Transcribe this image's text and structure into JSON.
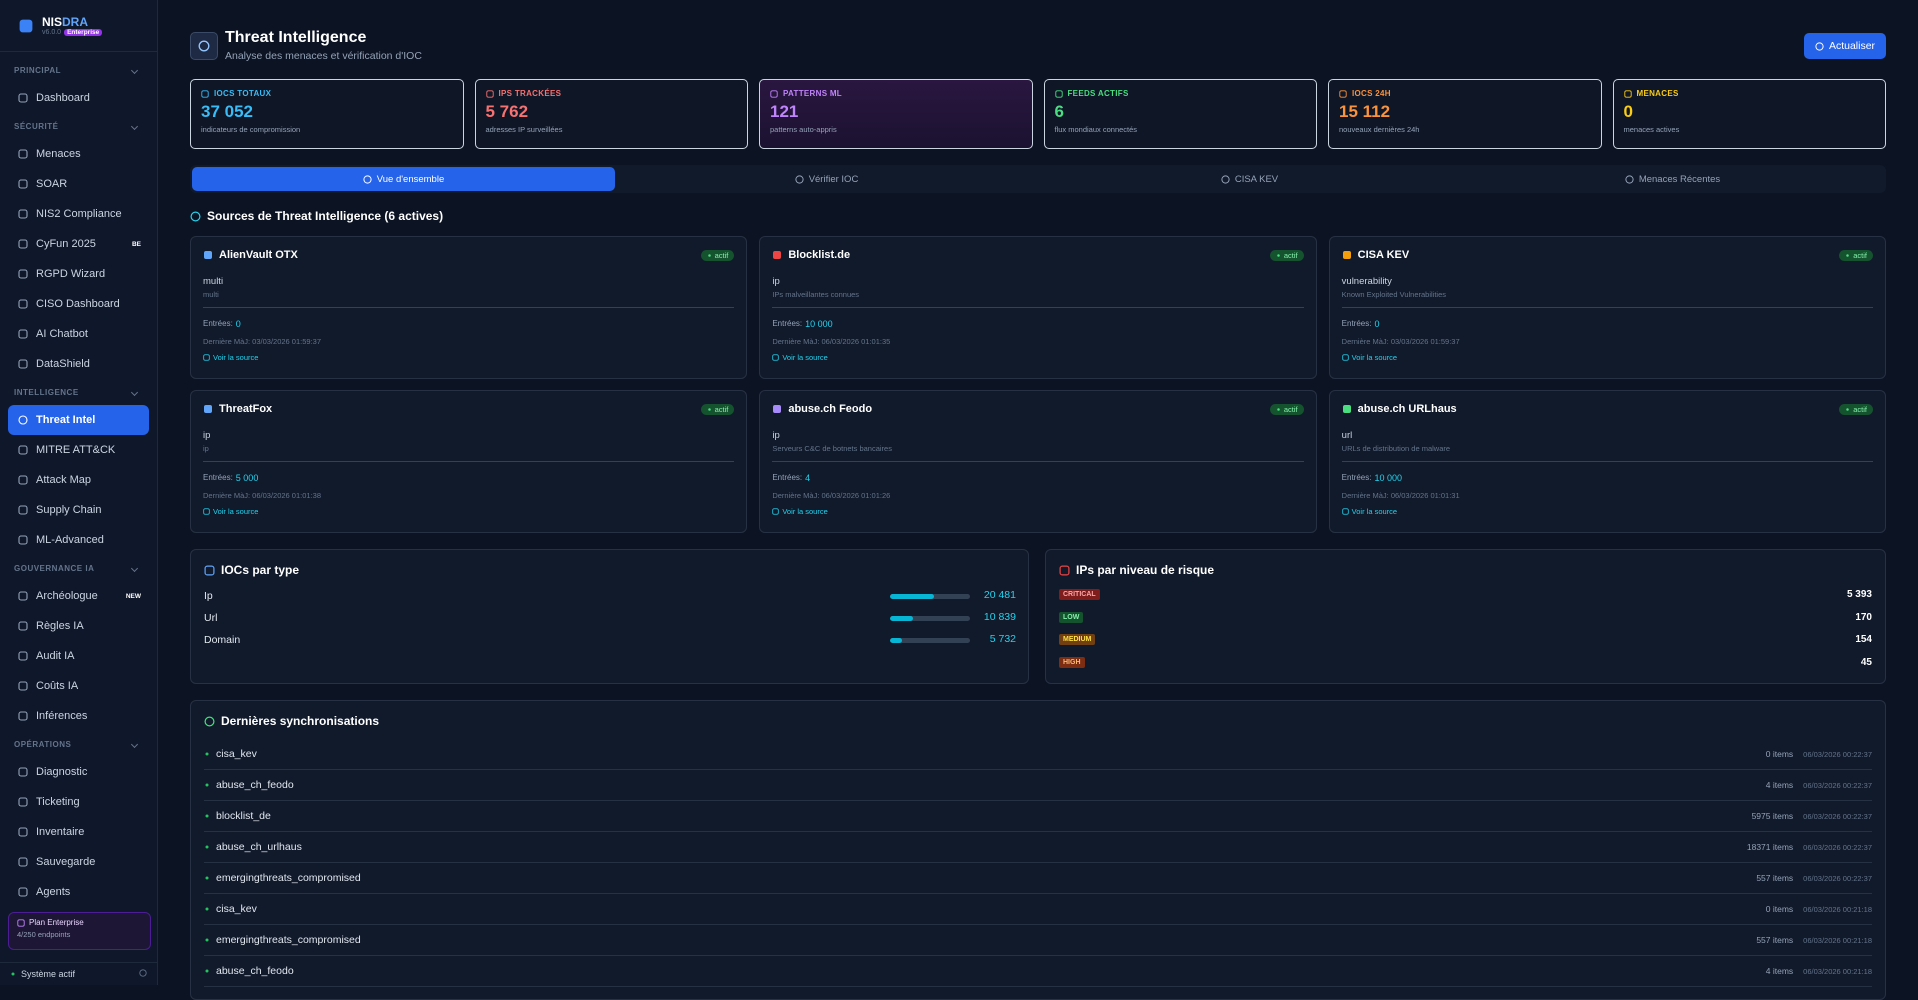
{
  "sidebar": {
    "brand_a": "NIS",
    "brand_b": "DRA",
    "version": "v6.0.0",
    "edition": "Enterprise",
    "sections": [
      {
        "label": "PRINCIPAL",
        "items": [
          {
            "label": "Dashboard"
          }
        ]
      },
      {
        "label": "SÉCURITÉ",
        "items": [
          {
            "label": "Menaces"
          },
          {
            "label": "SOAR"
          },
          {
            "label": "NIS2 Compliance"
          },
          {
            "label": "CyFun 2025",
            "badge": "BE"
          },
          {
            "label": "RGPD Wizard"
          },
          {
            "label": "CISO Dashboard"
          },
          {
            "label": "AI Chatbot"
          },
          {
            "label": "DataShield"
          }
        ]
      },
      {
        "label": "INTELLIGENCE",
        "items": [
          {
            "label": "Threat Intel",
            "active": true
          },
          {
            "label": "MITRE ATT&CK"
          },
          {
            "label": "Attack Map"
          },
          {
            "label": "Supply Chain"
          },
          {
            "label": "ML-Advanced"
          }
        ]
      },
      {
        "label": "GOUVERNANCE IA",
        "items": [
          {
            "label": "Archéologue",
            "badge": "NEW"
          },
          {
            "label": "Règles IA"
          },
          {
            "label": "Audit IA"
          },
          {
            "label": "Coûts IA"
          },
          {
            "label": "Inférences"
          }
        ]
      },
      {
        "label": "OPÉRATIONS",
        "items": [
          {
            "label": "Diagnostic"
          },
          {
            "label": "Ticketing"
          },
          {
            "label": "Inventaire"
          },
          {
            "label": "Sauvegarde"
          },
          {
            "label": "Agents"
          }
        ]
      }
    ],
    "plan": {
      "title": "Plan Enterprise",
      "usage": "4/250 endpoints"
    },
    "status": "Système actif"
  },
  "header": {
    "title": "Threat Intelligence",
    "subtitle": "Analyse des menaces et vérification d'IOC",
    "button": "Actualiser"
  },
  "stats": [
    {
      "label": "IOCS TOTAUX",
      "value": "37 052",
      "caption": "indicateurs de compromission",
      "color": "#38bdf8"
    },
    {
      "label": "IPS TRACKÉES",
      "value": "5 762",
      "caption": "adresses IP surveillées",
      "color": "#f87171"
    },
    {
      "label": "PATTERNS ML",
      "value": "121",
      "caption": "patterns auto-appris",
      "color": "#c084fc"
    },
    {
      "label": "FEEDS ACTIFS",
      "value": "6",
      "caption": "flux mondiaux connectés",
      "color": "#4ade80"
    },
    {
      "label": "IOCS 24H",
      "value": "15 112",
      "caption": "nouveaux dernières 24h",
      "color": "#fb923c"
    },
    {
      "label": "MENACES",
      "value": "0",
      "caption": "menaces actives",
      "color": "#facc15"
    }
  ],
  "tabs": [
    {
      "label": "Vue d'ensemble",
      "active": true
    },
    {
      "label": "Vérifier IOC"
    },
    {
      "label": "CISA KEV"
    },
    {
      "label": "Menaces Récentes"
    }
  ],
  "sources": {
    "title": "Sources de Threat Intelligence (6 actives)",
    "entries_label": "Entrées:",
    "link_label": "Voir la source",
    "cards": [
      {
        "name": "AlienVault OTX",
        "status": "actif",
        "type": "multi",
        "description": "multi",
        "entries": "0",
        "updated": "Dernière MàJ: 03/03/2026 01:59:37",
        "color": "#60a5fa"
      },
      {
        "name": "Blocklist.de",
        "status": "actif",
        "type": "ip",
        "description": "IPs malveillantes connues",
        "entries": "10 000",
        "updated": "Dernière MàJ: 06/03/2026 01:01:35",
        "color": "#ef4444"
      },
      {
        "name": "CISA KEV",
        "status": "actif",
        "type": "vulnerability",
        "description": "Known Exploited Vulnerabilities",
        "entries": "0",
        "updated": "Dernière MàJ: 03/03/2026 01:59:37",
        "color": "#f59e0b"
      },
      {
        "name": "ThreatFox",
        "status": "actif",
        "type": "ip",
        "description": "ip",
        "entries": "5 000",
        "updated": "Dernière MàJ: 06/03/2026 01:01:38",
        "color": "#60a5fa"
      },
      {
        "name": "abuse.ch Feodo",
        "status": "actif",
        "type": "ip",
        "description": "Serveurs C&C de botnets bancaires",
        "entries": "4",
        "updated": "Dernière MàJ: 06/03/2026 01:01:26",
        "color": "#a78bfa"
      },
      {
        "name": "abuse.ch URLhaus",
        "status": "actif",
        "type": "url",
        "description": "URLs de distribution de malware",
        "entries": "10 000",
        "updated": "Dernière MàJ: 06/03/2026 01:01:31",
        "color": "#4ade80"
      }
    ]
  },
  "ioc_types": {
    "title": "IOCs par type",
    "categories": [
      "Ip",
      "Url",
      "Domain"
    ],
    "values": [
      20481,
      10839,
      5732
    ],
    "value_labels": [
      "20 481",
      "10 839",
      "5 732"
    ],
    "color": "#06b6d4"
  },
  "risk": {
    "title": "IPs par niveau de risque",
    "rows": [
      {
        "level": "CRITICAL",
        "count": "5 393",
        "color": "#fca5a5",
        "background": "#7f1d1d"
      },
      {
        "level": "LOW",
        "count": "170",
        "color": "#86efac",
        "background": "#14532d"
      },
      {
        "level": "MEDIUM",
        "count": "154",
        "color": "#fde047",
        "background": "#713f12"
      },
      {
        "level": "HIGH",
        "count": "45",
        "color": "#fdba74",
        "background": "#7c2d12"
      }
    ]
  },
  "syncs": {
    "title": "Dernières synchronisations",
    "rows": [
      {
        "source": "cisa_kev",
        "items": "0 items",
        "time": "06/03/2026 00:22:37"
      },
      {
        "source": "abuse_ch_feodo",
        "items": "4 items",
        "time": "06/03/2026 00:22:37"
      },
      {
        "source": "blocklist_de",
        "items": "5975 items",
        "time": "06/03/2026 00:22:37"
      },
      {
        "source": "abuse_ch_urlhaus",
        "items": "18371 items",
        "time": "06/03/2026 00:22:37"
      },
      {
        "source": "emergingthreats_compromised",
        "items": "557 items",
        "time": "06/03/2026 00:22:37"
      },
      {
        "source": "cisa_kev",
        "items": "0 items",
        "time": "06/03/2026 00:21:18"
      },
      {
        "source": "emergingthreats_compromised",
        "items": "557 items",
        "time": "06/03/2026 00:21:18"
      },
      {
        "source": "abuse_ch_feodo",
        "items": "4 items",
        "time": "06/03/2026 00:21:18"
      }
    ]
  }
}
